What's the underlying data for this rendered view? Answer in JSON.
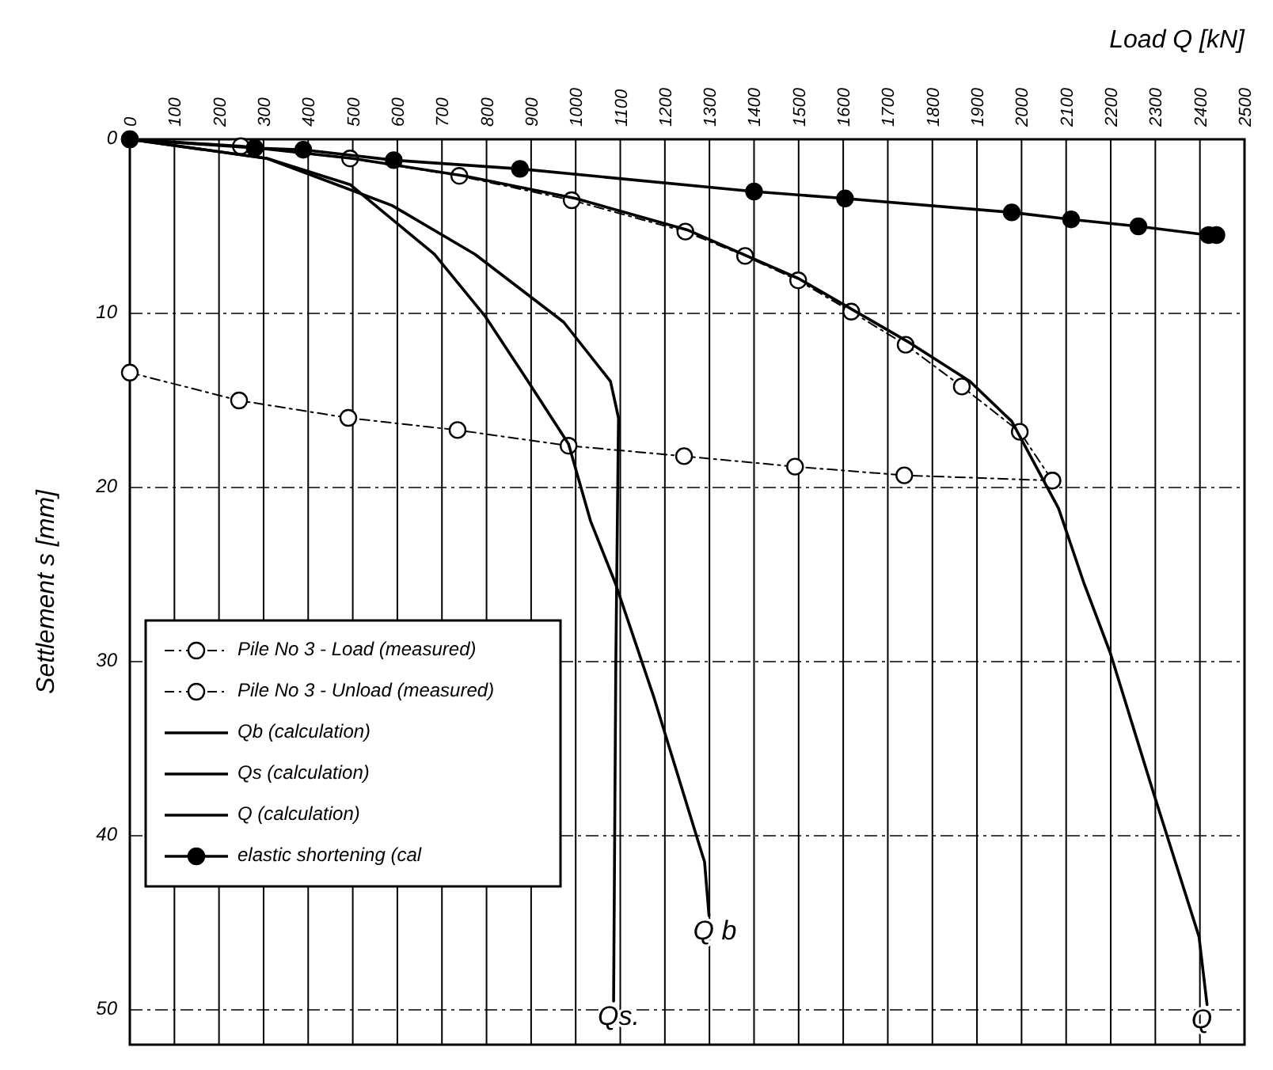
{
  "chart_data": {
    "type": "line",
    "xlabel": "Load  Q [kN]",
    "ylabel": "Settlement  s [mm]",
    "xlim": [
      0,
      2500
    ],
    "xticks": [
      0,
      100,
      200,
      300,
      400,
      500,
      600,
      700,
      800,
      900,
      1000,
      1100,
      1200,
      1300,
      1400,
      1500,
      1600,
      1700,
      1800,
      1900,
      2000,
      2100,
      2200,
      2300,
      2400,
      2500
    ],
    "ylim": [
      52,
      0
    ],
    "yticks": [
      0,
      10,
      20,
      30,
      40,
      50
    ],
    "grid": true,
    "legend": "bottom left",
    "series": [
      {
        "name": "Pile No 3 - Load (measured)",
        "color": "#000000",
        "marker": "circle",
        "line_style": "dashed",
        "x": [
          0,
          249,
          494,
          739,
          991,
          1246,
          1380,
          1499,
          1618,
          1740,
          1866,
          1996,
          2069
        ],
        "values": [
          0,
          0.4,
          1.1,
          2.1,
          3.5,
          5.3,
          6.7,
          8.1,
          9.9,
          11.8,
          14.2,
          16.8,
          19.6
        ]
      },
      {
        "name": "Pile No 3 - Unload (measured)",
        "color": "#000000",
        "marker": "circle",
        "line_style": "dashed",
        "x": [
          0,
          245,
          490,
          735,
          984,
          1243,
          1492,
          1737,
          2069
        ],
        "values": [
          13.4,
          15.0,
          16.0,
          16.7,
          17.6,
          18.2,
          18.8,
          19.3,
          19.6
        ]
      },
      {
        "name": "Qb (calculation)",
        "color": "#000000",
        "marker": "none",
        "line_style": "solid",
        "x": [
          0,
          308,
          494,
          683,
          798,
          893,
          984,
          1033,
          1089,
          1176,
          1278,
          1289,
          1299
        ],
        "values": [
          0,
          1.1,
          2.6,
          6.6,
          10.2,
          13.9,
          17.5,
          21.9,
          25.5,
          32.1,
          40.6,
          41.5,
          44.6
        ]
      },
      {
        "name": "Qs (calculation)",
        "color": "#000000",
        "marker": "none",
        "line_style": "solid",
        "x": [
          0,
          308,
          588,
          774,
          973,
          1078,
          1096,
          1090,
          1085
        ],
        "values": [
          0,
          1.1,
          3.8,
          6.6,
          10.5,
          13.9,
          16,
          30,
          49.5
        ]
      },
      {
        "name": "Q (calculation)",
        "color": "#000000",
        "marker": "none",
        "line_style": "solid",
        "x": [
          0,
          250,
          500,
          750,
          1000,
          1250,
          1500,
          1750,
          1884,
          1978,
          2083,
          2140,
          2199,
          2293,
          2398,
          2416
        ],
        "values": [
          0,
          0.4,
          1.1,
          2.1,
          3.4,
          5.2,
          8,
          11.7,
          13.9,
          16.2,
          21.2,
          25.5,
          29.5,
          37.3,
          45.8,
          49.7
        ]
      },
      {
        "name": "elastic shortening (cal",
        "color": "#000000",
        "marker": "circle",
        "line_style": "solid",
        "x": [
          0,
          280,
          389,
          592,
          875,
          1400,
          1604,
          1978,
          2111,
          2262,
          2419,
          2437
        ],
        "values": [
          0,
          0.5,
          0.6,
          1.2,
          1.7,
          3.0,
          3.4,
          4.2,
          4.6,
          5.0,
          5.5,
          5.5
        ]
      }
    ],
    "annotations": [
      {
        "text": "Q b",
        "x": 1299,
        "y": 44.6
      },
      {
        "text": "Qs.",
        "x": 1085,
        "y": 49.5
      },
      {
        "text": "Q",
        "x": 2416,
        "y": 49.7
      }
    ]
  }
}
